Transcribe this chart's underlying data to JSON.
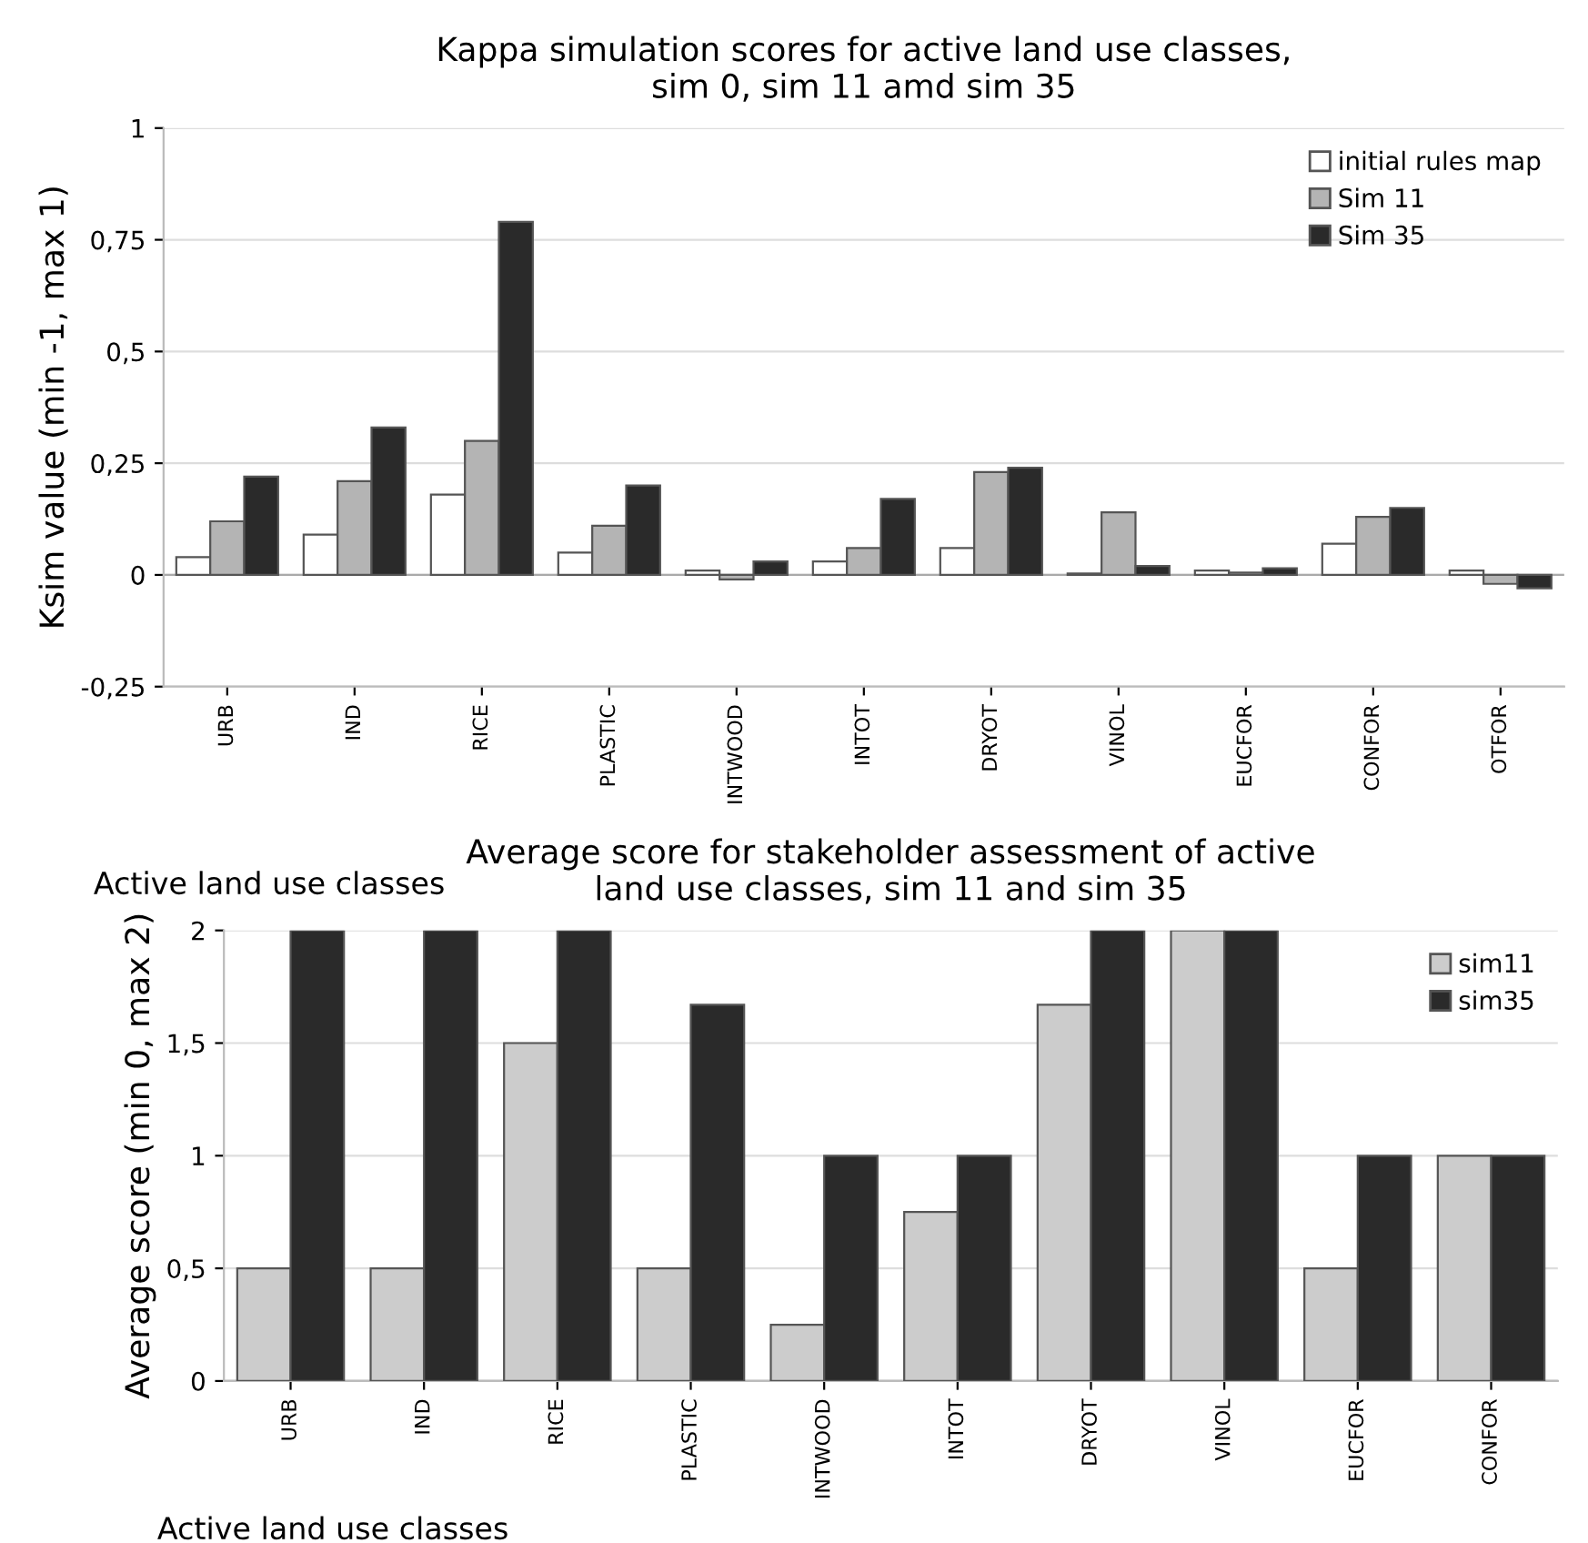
{
  "chart_data": [
    {
      "type": "bar",
      "title": "Kappa simulation scores for active land use classes,\nsim 0, sim 11 amd sim 35",
      "ylabel": "Ksim value (min -1, max 1)",
      "xlabel": "Active land use classes",
      "categories": [
        "URB",
        "IND",
        "RICE",
        "PLASTIC",
        "INTWOOD",
        "INTOT",
        "DRYOT",
        "VINOL",
        "EUCFOR",
        "CONFOR",
        "OTFOR"
      ],
      "series": [
        {
          "name": "initial rules map",
          "color": "#ffffff",
          "values": [
            0.04,
            0.09,
            0.18,
            0.05,
            0.01,
            0.03,
            0.06,
            0.003,
            0.01,
            0.07,
            0.01
          ]
        },
        {
          "name": "Sim 11",
          "color": "#b4b4b4",
          "values": [
            0.12,
            0.21,
            0.3,
            0.11,
            -0.01,
            0.06,
            0.23,
            0.14,
            0.005,
            0.13,
            -0.02
          ]
        },
        {
          "name": "Sim 35",
          "color": "#2a2a2a",
          "values": [
            0.22,
            0.33,
            0.79,
            0.2,
            0.03,
            0.17,
            0.24,
            0.02,
            0.015,
            0.15,
            -0.03
          ]
        }
      ],
      "ylim": [
        -0.25,
        1
      ],
      "yticks": [
        {
          "value": -0.25,
          "label": "-0,25"
        },
        0,
        {
          "value": 0.25,
          "label": "0,25"
        },
        {
          "value": 0.5,
          "label": "0,5"
        },
        {
          "value": 0.75,
          "label": "0,75"
        },
        1
      ],
      "grid": "y",
      "legend": "top right"
    },
    {
      "type": "bar",
      "title": "Average score for stakeholder assessment of active\nland use classes, sim 11 and sim 35",
      "ylabel": "Average score (min 0, max 2)",
      "xlabel": "Active land use classes",
      "categories": [
        "URB",
        "IND",
        "RICE",
        "PLASTIC",
        "INTWOOD",
        "INTOT",
        "DRYOT",
        "VINOL",
        "EUCFOR",
        "CONFOR"
      ],
      "series": [
        {
          "name": "sim11",
          "color": "#cccccc",
          "values": [
            0.5,
            0.5,
            1.5,
            0.5,
            0.25,
            0.75,
            1.67,
            2,
            0.5,
            1
          ]
        },
        {
          "name": "sim35",
          "color": "#2a2a2a",
          "values": [
            2,
            2,
            2,
            1.67,
            1,
            1,
            2,
            2,
            1,
            1
          ]
        }
      ],
      "ylim": [
        0,
        2
      ],
      "yticks": [
        0,
        {
          "value": 0.5,
          "label": "0,5"
        },
        1,
        {
          "value": 1.5,
          "label": "1,5"
        },
        2
      ],
      "grid": "y",
      "legend": "top right"
    }
  ]
}
